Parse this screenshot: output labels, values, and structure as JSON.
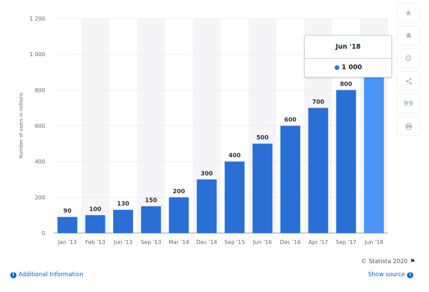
{
  "chart_data": {
    "type": "bar",
    "categories": [
      "Jan '13",
      "Feb '13",
      "Jun '13",
      "Sep '13",
      "Mar '14",
      "Dec '14",
      "Sep '15",
      "Jun '16",
      "Dec '16",
      "Apr '17",
      "Sep '17",
      "Jun '18"
    ],
    "values": [
      90,
      100,
      130,
      150,
      200,
      300,
      400,
      500,
      600,
      700,
      800,
      1000
    ],
    "value_labels": [
      "90",
      "100",
      "130",
      "150",
      "200",
      "300",
      "400",
      "500",
      "600",
      "700",
      "800",
      ""
    ],
    "ylabel": "Number of users in millions",
    "ylim": [
      0,
      1200
    ],
    "yticks": [
      0,
      200,
      400,
      600,
      800,
      1000,
      1200
    ],
    "ytick_labels": [
      "0",
      "200",
      "400",
      "600",
      "800",
      "1 000",
      "1 200"
    ],
    "grid": true,
    "bar_color": "#2a6fd6",
    "highlight_color": "#4a95f5",
    "highlight_index": 11
  },
  "tooltip": {
    "title": "Jun '18",
    "value": "1 000",
    "dot": "●"
  },
  "toolbar": {
    "icons": [
      "star-icon",
      "bell-icon",
      "gear-icon",
      "share-icon",
      "quote-icon",
      "print-icon"
    ],
    "glyphs": [
      "★",
      "🔔",
      "⚙",
      "<",
      "99",
      "⎙"
    ]
  },
  "footer": {
    "additional_info": "Additional Information",
    "copyright": "© Statista 2020",
    "show_source": "Show source"
  }
}
